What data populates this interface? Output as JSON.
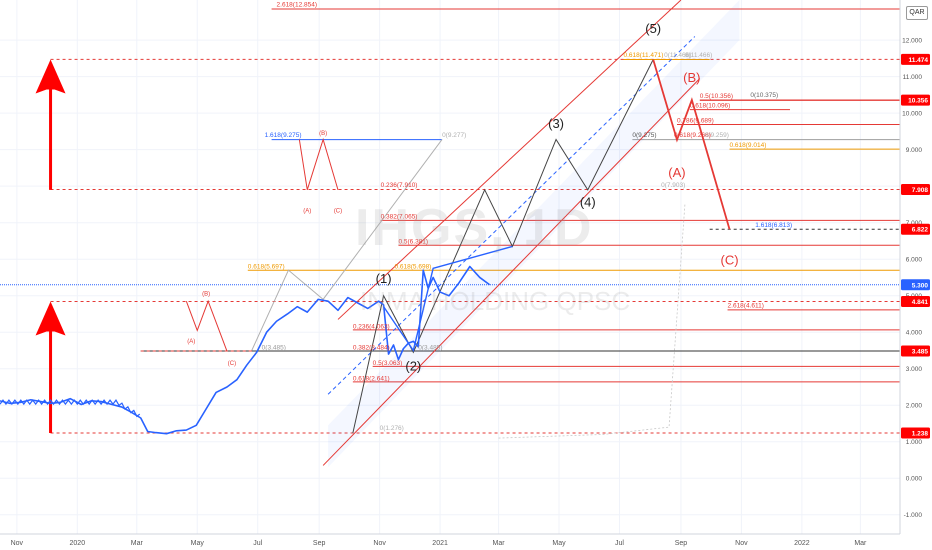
{
  "chart_data": {
    "type": "line",
    "symbol": "IHGS, 1D",
    "company": "INMA HOLDING QPSC",
    "currency": "QAR",
    "x_tick_labels": [
      "Nov",
      "2020",
      "Mar",
      "May",
      "Jul",
      "Sep",
      "Nov",
      "2021",
      "Mar",
      "May",
      "Jul",
      "Sep",
      "Nov",
      "2022",
      "Mar"
    ],
    "x_range": [
      "2019-10-15",
      "2022-04-10"
    ],
    "y_ticks": [
      "-1.000",
      "0.000",
      "1.000",
      "2.000",
      "3.000",
      "4.000",
      "5.000",
      "6.000",
      "7.000",
      "8.000",
      "9.000",
      "10.000",
      "11.000",
      "12.000"
    ],
    "ylim": [
      -1.5,
      13.1
    ],
    "price_labels": [
      {
        "value": 11.474,
        "text": "11.474"
      },
      {
        "value": 10.356,
        "text": "10.356"
      },
      {
        "value": 7.908,
        "text": "7.908"
      },
      {
        "value": 6.822,
        "text": "6.822"
      },
      {
        "value": 5.3,
        "text": "5.300",
        "style": "blue"
      },
      {
        "value": 4.841,
        "text": "4.841"
      },
      {
        "value": 3.485,
        "text": "3.485"
      },
      {
        "value": 1.238,
        "text": "1.238"
      }
    ],
    "price_series": {
      "name": "IHGS",
      "color": "#2962ff",
      "x": [
        "2019-10-15",
        "2019-10-25",
        "2019-11-05",
        "2019-11-15",
        "2019-11-25",
        "2019-12-05",
        "2019-12-15",
        "2019-12-25",
        "2020-01-05",
        "2020-01-15",
        "2020-01-25",
        "2020-02-05",
        "2020-02-15",
        "2020-02-25",
        "2020-03-05",
        "2020-03-12",
        "2020-03-20",
        "2020-03-31",
        "2020-04-10",
        "2020-04-20",
        "2020-04-30",
        "2020-05-10",
        "2020-05-20",
        "2020-05-31",
        "2020-06-10",
        "2020-06-20",
        "2020-06-30",
        "2020-07-10",
        "2020-07-20",
        "2020-07-31",
        "2020-08-10",
        "2020-08-20",
        "2020-08-31",
        "2020-09-10",
        "2020-09-20",
        "2020-09-30",
        "2020-10-10",
        "2020-10-20",
        "2020-10-31",
        "2020-11-05",
        "2020-11-10",
        "2020-11-15",
        "2020-11-20",
        "2020-11-25",
        "2020-11-30",
        "2020-12-05",
        "2020-12-10",
        "2020-12-15",
        "2020-12-20",
        "2020-12-25",
        "2021-01-01",
        "2021-01-10",
        "2021-01-20",
        "2021-01-31",
        "2021-02-10",
        "2021-02-20"
      ],
      "y": [
        2.12,
        2.05,
        2.08,
        2.15,
        2.1,
        2.05,
        2.08,
        2.18,
        2.02,
        2.12,
        2.1,
        2.02,
        1.95,
        1.8,
        1.65,
        1.28,
        1.25,
        1.22,
        1.3,
        1.32,
        1.45,
        1.9,
        2.35,
        2.5,
        2.7,
        3.1,
        3.45,
        4.0,
        4.3,
        4.5,
        4.7,
        4.55,
        4.9,
        4.85,
        4.6,
        4.95,
        4.8,
        4.65,
        4.85,
        4.75,
        3.4,
        3.65,
        3.25,
        3.55,
        3.7,
        3.75,
        3.6,
        5.7,
        5.2,
        5.5,
        5.1,
        5.0,
        5.35,
        5.8,
        5.5,
        5.3
      ]
    },
    "wave_labels": [
      {
        "text": "(1)",
        "x": "2020-11-05",
        "y": 5.35,
        "color": "#222222"
      },
      {
        "text": "(2)",
        "x": "2020-12-05",
        "y": 2.95,
        "color": "#222222"
      },
      {
        "text": "(3)",
        "x": "2021-04-28",
        "y": 9.6,
        "color": "#222222"
      },
      {
        "text": "(4)",
        "x": "2021-05-30",
        "y": 7.45,
        "color": "#222222"
      },
      {
        "text": "(5)",
        "x": "2021-08-04",
        "y": 12.2,
        "color": "#222222"
      },
      {
        "text": "(A)",
        "x": "2021-08-28",
        "y": 8.25,
        "color": "#e53935"
      },
      {
        "text": "(B)",
        "x": "2021-09-12",
        "y": 10.85,
        "color": "#e53935"
      },
      {
        "text": "(C)",
        "x": "2021-10-20",
        "y": 5.85,
        "color": "#e53935"
      },
      {
        "text": "(A)",
        "x": "2020-08-20",
        "y": 7.28,
        "color": "#e53935",
        "small": true
      },
      {
        "text": "(B)",
        "x": "2020-09-05",
        "y": 9.4,
        "color": "#e53935",
        "small": true
      },
      {
        "text": "(C)",
        "x": "2020-09-20",
        "y": 7.28,
        "color": "#e53935",
        "small": true
      },
      {
        "text": "(A)",
        "x": "2020-04-25",
        "y": 3.7,
        "color": "#e53935",
        "small": true
      },
      {
        "text": "(B)",
        "x": "2020-05-10",
        "y": 5.0,
        "color": "#e53935",
        "small": true
      },
      {
        "text": "(C)",
        "x": "2020-06-05",
        "y": 3.1,
        "color": "#e53935",
        "small": true
      }
    ],
    "fib_labels": [
      {
        "text": "2.618(12.854)",
        "x": "2020-07-20",
        "y": 12.92,
        "color": "#e53935"
      },
      {
        "text": "1.618(9.275)",
        "x": "2020-07-08",
        "y": 9.35,
        "color": "#2962ff"
      },
      {
        "text": "0(9.277)",
        "x": "2021-01-03",
        "y": 9.35,
        "color": "#b0b0b0"
      },
      {
        "text": "0.236(7.910)",
        "x": "2020-11-02",
        "y": 7.98,
        "color": "#e53935"
      },
      {
        "text": "0(7.903)",
        "x": "2021-08-12",
        "y": 7.98,
        "color": "#b0b0b0"
      },
      {
        "text": "0.382(7.065)",
        "x": "2020-11-02",
        "y": 7.12,
        "color": "#e53935"
      },
      {
        "text": "0.5(6.381)",
        "x": "2020-11-20",
        "y": 6.43,
        "color": "#e53935"
      },
      {
        "text": "0.618(5.697)",
        "x": "2020-06-21",
        "y": 5.75,
        "color": "#ef9a00"
      },
      {
        "text": "0.618(5.698)",
        "x": "2020-11-16",
        "y": 5.75,
        "color": "#ef9a00"
      },
      {
        "text": "0.236(4.063)",
        "x": "2020-10-05",
        "y": 4.1,
        "color": "#e53935"
      },
      {
        "text": "0.382(3.484)",
        "x": "2020-10-05",
        "y": 3.52,
        "color": "#e53935"
      },
      {
        "text": "0(3.485)",
        "x": "2020-07-05",
        "y": 3.52,
        "color": "#999999"
      },
      {
        "text": "0(3.485)",
        "x": "2020-12-10",
        "y": 3.52,
        "color": "#999999"
      },
      {
        "text": "0.5(3.063)",
        "x": "2020-10-25",
        "y": 3.1,
        "color": "#e53935"
      },
      {
        "text": "0.618(2.641)",
        "x": "2020-10-05",
        "y": 2.68,
        "color": "#e53935"
      },
      {
        "text": "0(1.276)",
        "x": "2020-11-01",
        "y": 1.32,
        "color": "#b0b0b0"
      },
      {
        "text": "0.618(11.471)",
        "x": "2021-07-05",
        "y": 11.54,
        "color": "#ef9a00"
      },
      {
        "text": "0(11.466)",
        "x": "2021-08-15",
        "y": 11.54,
        "color": "#b0b0b0"
      },
      {
        "text": "0(11.466)",
        "x": "2021-09-05",
        "y": 11.54,
        "color": "#b0b0b0"
      },
      {
        "text": "0.5(10.356)",
        "x": "2021-09-20",
        "y": 10.42,
        "color": "#e53935"
      },
      {
        "text": "0.618(10.096)",
        "x": "2021-09-10",
        "y": 10.16,
        "color": "#e53935"
      },
      {
        "text": "0(10.375)",
        "x": "2021-11-10",
        "y": 10.44,
        "color": "#666666"
      },
      {
        "text": "0.786(9.689)",
        "x": "2021-08-28",
        "y": 9.75,
        "color": "#e53935"
      },
      {
        "text": "0(9.275)",
        "x": "2021-07-14",
        "y": 9.35,
        "color": "#555555"
      },
      {
        "text": "0.618(9.268)",
        "x": "2021-08-25",
        "y": 9.35,
        "color": "#e53935"
      },
      {
        "text": "0(9.259)",
        "x": "2021-09-25",
        "y": 9.35,
        "color": "#b0b0b0"
      },
      {
        "text": "0.618(9.014)",
        "x": "2021-10-20",
        "y": 9.08,
        "color": "#ef9a00"
      },
      {
        "text": "1.618(6.813)",
        "x": "2021-11-15",
        "y": 6.88,
        "color": "#2962ff"
      },
      {
        "text": "2.618(4.611)",
        "x": "2021-10-18",
        "y": 4.68,
        "color": "#e53935"
      }
    ]
  }
}
